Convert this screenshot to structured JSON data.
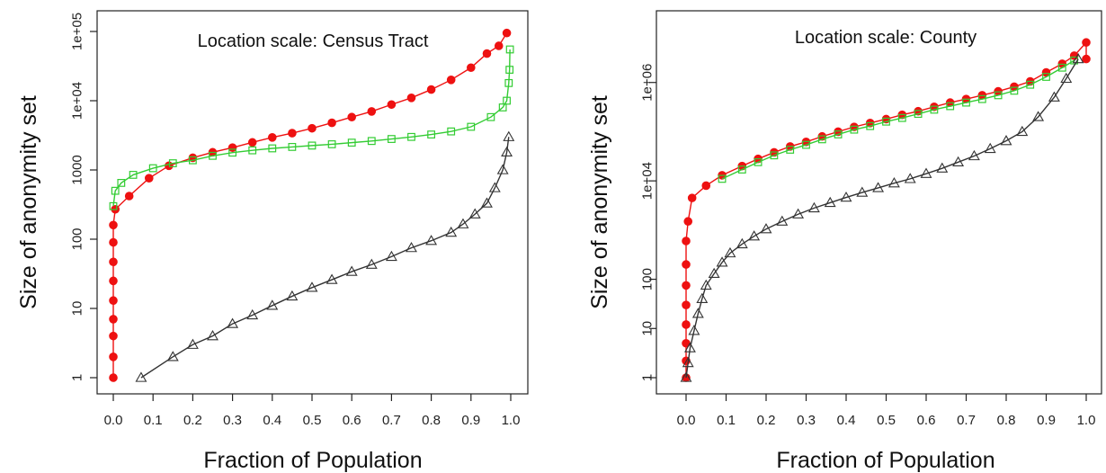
{
  "chart_data": [
    {
      "type": "line",
      "title": "Location scale: Census Tract",
      "xlabel": "Fraction of Population",
      "ylabel": "Size of anonymity set",
      "y_scale": "log",
      "xlim": [
        0,
        1
      ],
      "ylim": [
        1,
        100000
      ],
      "grid": false,
      "legend": "none",
      "x_ticks": [
        "0.0",
        "0.1",
        "0.2",
        "0.3",
        "0.4",
        "0.5",
        "0.6",
        "0.7",
        "0.8",
        "0.9",
        "1.0"
      ],
      "y_ticks": [
        {
          "value": 1,
          "label": "1"
        },
        {
          "value": 10,
          "label": "10"
        },
        {
          "value": 100,
          "label": "100"
        },
        {
          "value": 1000,
          "label": "1000"
        },
        {
          "value": 10000,
          "label": "1e+04"
        },
        {
          "value": 100000,
          "label": "1e+05"
        }
      ],
      "series": [
        {
          "color": "#ee1111",
          "marker": "circle-filled",
          "points": [
            [
              0,
              1
            ],
            [
              0,
              2
            ],
            [
              0,
              4
            ],
            [
              0,
              7
            ],
            [
              0,
              13
            ],
            [
              0,
              25
            ],
            [
              0,
              47
            ],
            [
              0,
              90
            ],
            [
              0,
              160
            ],
            [
              0.005,
              270
            ],
            [
              0.04,
              420
            ],
            [
              0.09,
              760
            ],
            [
              0.14,
              1150
            ],
            [
              0.2,
              1500
            ],
            [
              0.25,
              1800
            ],
            [
              0.3,
              2100
            ],
            [
              0.35,
              2500
            ],
            [
              0.4,
              2950
            ],
            [
              0.45,
              3400
            ],
            [
              0.5,
              4000
            ],
            [
              0.55,
              4800
            ],
            [
              0.6,
              5800
            ],
            [
              0.65,
              7000
            ],
            [
              0.7,
              8800
            ],
            [
              0.75,
              11000
            ],
            [
              0.8,
              14500
            ],
            [
              0.85,
              20000
            ],
            [
              0.9,
              30000
            ],
            [
              0.94,
              48000
            ],
            [
              0.97,
              62000
            ],
            [
              0.99,
              95000
            ]
          ]
        },
        {
          "color": "#33cc33",
          "marker": "square-open",
          "points": [
            [
              0,
              300
            ],
            [
              0.005,
              500
            ],
            [
              0.02,
              650
            ],
            [
              0.05,
              850
            ],
            [
              0.1,
              1060
            ],
            [
              0.15,
              1250
            ],
            [
              0.2,
              1380
            ],
            [
              0.25,
              1600
            ],
            [
              0.3,
              1780
            ],
            [
              0.35,
              1920
            ],
            [
              0.4,
              2050
            ],
            [
              0.45,
              2150
            ],
            [
              0.5,
              2250
            ],
            [
              0.55,
              2350
            ],
            [
              0.6,
              2480
            ],
            [
              0.65,
              2620
            ],
            [
              0.7,
              2800
            ],
            [
              0.75,
              3000
            ],
            [
              0.8,
              3250
            ],
            [
              0.85,
              3600
            ],
            [
              0.9,
              4200
            ],
            [
              0.95,
              5800
            ],
            [
              0.98,
              8000
            ],
            [
              0.99,
              10000
            ],
            [
              0.995,
              18000
            ],
            [
              0.997,
              28000
            ],
            [
              0.998,
              55000
            ]
          ]
        },
        {
          "color": "#333333",
          "marker": "triangle-open",
          "points": [
            [
              0.07,
              1
            ],
            [
              0.15,
              2
            ],
            [
              0.2,
              3
            ],
            [
              0.25,
              4
            ],
            [
              0.3,
              6
            ],
            [
              0.35,
              8
            ],
            [
              0.4,
              11
            ],
            [
              0.45,
              15
            ],
            [
              0.5,
              20
            ],
            [
              0.55,
              26
            ],
            [
              0.6,
              34
            ],
            [
              0.65,
              43
            ],
            [
              0.7,
              56
            ],
            [
              0.75,
              75
            ],
            [
              0.8,
              95
            ],
            [
              0.85,
              125
            ],
            [
              0.88,
              165
            ],
            [
              0.91,
              230
            ],
            [
              0.94,
              330
            ],
            [
              0.96,
              550
            ],
            [
              0.98,
              1000
            ],
            [
              0.99,
              1800
            ],
            [
              0.995,
              3000
            ]
          ]
        }
      ]
    },
    {
      "type": "line",
      "title": "Location scale: County",
      "xlabel": "Fraction of Population",
      "ylabel": "Size of anonymity set",
      "y_scale": "log",
      "xlim": [
        0,
        1
      ],
      "ylim": [
        1,
        10000000
      ],
      "grid": false,
      "legend": "none",
      "x_ticks": [
        "0.0",
        "0.1",
        "0.2",
        "0.3",
        "0.4",
        "0.5",
        "0.6",
        "0.7",
        "0.8",
        "0.9",
        "1.0"
      ],
      "y_ticks": [
        {
          "value": 1,
          "label": "1"
        },
        {
          "value": 10,
          "label": "10"
        },
        {
          "value": 100,
          "label": "100"
        },
        {
          "value": 10000,
          "label": "1e+04"
        },
        {
          "value": 1000000,
          "label": "1e+06"
        }
      ],
      "series": [
        {
          "color": "#ee1111",
          "marker": "circle-filled",
          "points": [
            [
              0,
              1
            ],
            [
              0,
              2.2
            ],
            [
              0,
              5
            ],
            [
              0,
              12
            ],
            [
              0,
              30
            ],
            [
              0,
              75
            ],
            [
              0,
              200
            ],
            [
              0,
              600
            ],
            [
              0.005,
              1500
            ],
            [
              0.015,
              4500
            ],
            [
              0.05,
              8000
            ],
            [
              0.09,
              13000
            ],
            [
              0.14,
              20000
            ],
            [
              0.18,
              28000
            ],
            [
              0.22,
              38000
            ],
            [
              0.26,
              50000
            ],
            [
              0.3,
              62000
            ],
            [
              0.34,
              80000
            ],
            [
              0.38,
              100000
            ],
            [
              0.42,
              125000
            ],
            [
              0.46,
              150000
            ],
            [
              0.5,
              180000
            ],
            [
              0.54,
              220000
            ],
            [
              0.58,
              260000
            ],
            [
              0.62,
              320000
            ],
            [
              0.66,
              390000
            ],
            [
              0.7,
              460000
            ],
            [
              0.74,
              550000
            ],
            [
              0.78,
              660000
            ],
            [
              0.82,
              820000
            ],
            [
              0.86,
              1050000
            ],
            [
              0.9,
              1600000
            ],
            [
              0.94,
              2400000
            ],
            [
              0.97,
              3500000
            ],
            [
              1,
              6500000
            ],
            [
              1,
              3000000
            ]
          ]
        },
        {
          "color": "#33cc33",
          "marker": "square-open",
          "points": [
            [
              0.09,
              11000
            ],
            [
              0.14,
              17000
            ],
            [
              0.18,
              24000
            ],
            [
              0.22,
              33000
            ],
            [
              0.26,
              43000
            ],
            [
              0.3,
              54000
            ],
            [
              0.34,
              70000
            ],
            [
              0.38,
              88000
            ],
            [
              0.42,
              110000
            ],
            [
              0.46,
              130000
            ],
            [
              0.5,
              160000
            ],
            [
              0.54,
              190000
            ],
            [
              0.58,
              230000
            ],
            [
              0.62,
              280000
            ],
            [
              0.66,
              330000
            ],
            [
              0.7,
              390000
            ],
            [
              0.74,
              460000
            ],
            [
              0.78,
              550000
            ],
            [
              0.82,
              680000
            ],
            [
              0.86,
              900000
            ],
            [
              0.9,
              1300000
            ],
            [
              0.94,
              2000000
            ],
            [
              0.97,
              2800000
            ]
          ]
        },
        {
          "color": "#333333",
          "marker": "triangle-open",
          "points": [
            [
              0,
              1
            ],
            [
              0.005,
              2
            ],
            [
              0.01,
              4
            ],
            [
              0.02,
              9
            ],
            [
              0.03,
              20
            ],
            [
              0.04,
              40
            ],
            [
              0.05,
              75
            ],
            [
              0.07,
              130
            ],
            [
              0.09,
              220
            ],
            [
              0.11,
              340
            ],
            [
              0.14,
              520
            ],
            [
              0.17,
              750
            ],
            [
              0.2,
              1050
            ],
            [
              0.24,
              1500
            ],
            [
              0.28,
              2100
            ],
            [
              0.32,
              2800
            ],
            [
              0.36,
              3600
            ],
            [
              0.4,
              4600
            ],
            [
              0.44,
              5800
            ],
            [
              0.48,
              7200
            ],
            [
              0.52,
              9000
            ],
            [
              0.56,
              11000
            ],
            [
              0.6,
              14000
            ],
            [
              0.64,
              18000
            ],
            [
              0.68,
              24000
            ],
            [
              0.72,
              32000
            ],
            [
              0.76,
              45000
            ],
            [
              0.8,
              65000
            ],
            [
              0.84,
              100000
            ],
            [
              0.88,
              200000
            ],
            [
              0.92,
              500000
            ],
            [
              0.95,
              1200000
            ],
            [
              0.98,
              3000000
            ]
          ]
        }
      ]
    }
  ]
}
